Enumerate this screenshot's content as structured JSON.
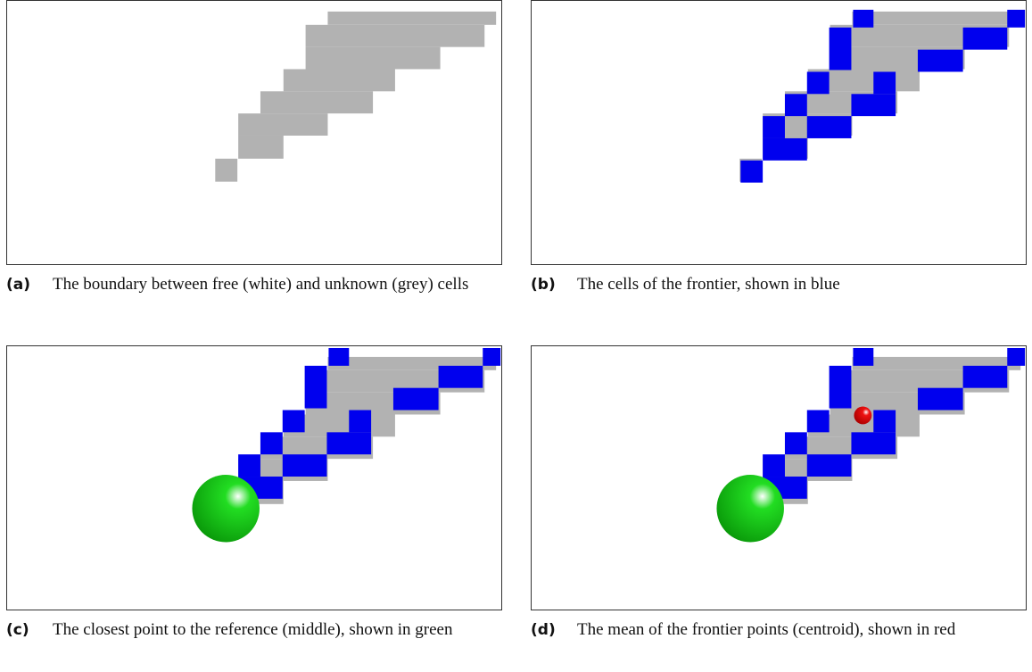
{
  "figure": {
    "subfigures": [
      {
        "label": "(a)",
        "caption": "The boundary between free (white) and unknown (grey) cells"
      },
      {
        "label": "(b)",
        "caption": "The cells of the frontier, shown in blue"
      },
      {
        "label": "(c)",
        "caption": "The closest point to the reference (middle), shown in green"
      },
      {
        "label": "(d)",
        "caption": "The mean of the frontier points (centroid), shown in red"
      }
    ]
  }
}
